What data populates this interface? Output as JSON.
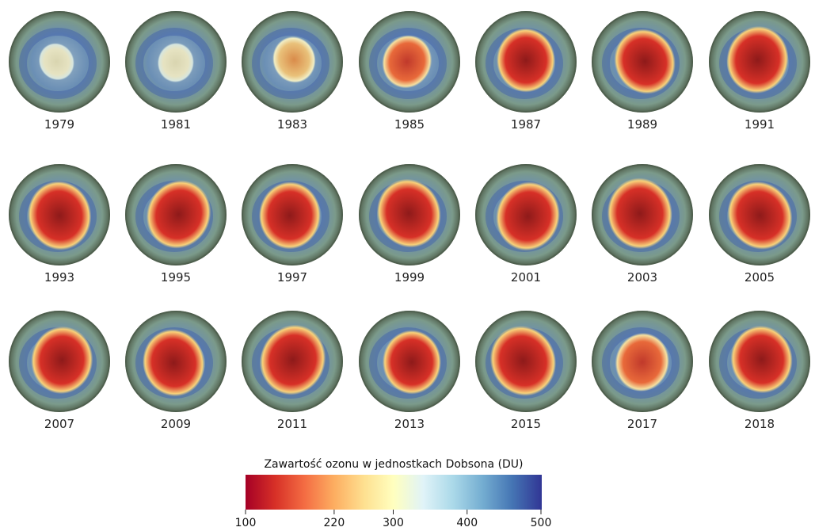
{
  "maps": [
    {
      "year": "1979",
      "hole": 0.0
    },
    {
      "year": "1981",
      "hole": 0.05
    },
    {
      "year": "1983",
      "hole": 0.25
    },
    {
      "year": "1985",
      "hole": 0.45
    },
    {
      "year": "1987",
      "hole": 0.75
    },
    {
      "year": "1989",
      "hole": 0.8
    },
    {
      "year": "1991",
      "hole": 0.85
    },
    {
      "year": "1993",
      "hole": 0.9
    },
    {
      "year": "1995",
      "hole": 0.9
    },
    {
      "year": "1997",
      "hole": 0.85
    },
    {
      "year": "1999",
      "hole": 0.9
    },
    {
      "year": "2001",
      "hole": 0.9
    },
    {
      "year": "2003",
      "hole": 0.95
    },
    {
      "year": "2005",
      "hole": 0.9
    },
    {
      "year": "2007",
      "hole": 0.85
    },
    {
      "year": "2009",
      "hole": 0.85
    },
    {
      "year": "2011",
      "hole": 0.95
    },
    {
      "year": "2013",
      "hole": 0.75
    },
    {
      "year": "2015",
      "hole": 0.95
    },
    {
      "year": "2017",
      "hole": 0.6
    },
    {
      "year": "2018",
      "hole": 0.85
    }
  ],
  "legend": {
    "title": "Zawartość ozonu w jednostkach Dobsona (DU)",
    "ticks": [
      "100",
      "220",
      "300",
      "400",
      "500"
    ],
    "tick_values": [
      100,
      220,
      300,
      400,
      500
    ],
    "range": [
      100,
      500
    ],
    "colors": [
      "#a50026",
      "#d73027",
      "#f46d43",
      "#fdae61",
      "#fee090",
      "#ffffbf",
      "#e0f3f8",
      "#abd9e9",
      "#74add1",
      "#4575b4",
      "#313695"
    ]
  }
}
